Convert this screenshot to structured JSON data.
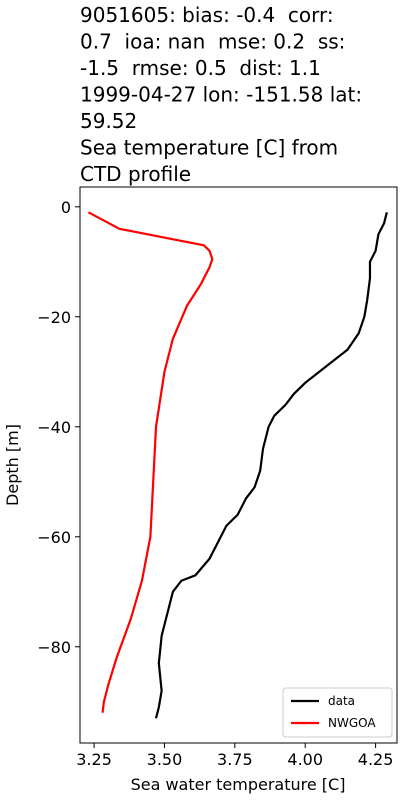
{
  "chart_data": {
    "type": "line",
    "title": [
      "9051605: bias: -0.4  corr:",
      "0.7  ioa: nan  mse: 0.2  ss:",
      "-1.5  rmse: 0.5  dist: 1.1",
      "1999-04-27 lon: -151.58 lat:",
      "59.52",
      "Sea temperature [C] from",
      "CTD profile"
    ],
    "x_label": "Sea water temperature [C]",
    "y_label": "Depth [m]",
    "xlim": [
      3.2,
      4.326
    ],
    "ylim": [
      -97.5,
      3.6
    ],
    "xticks": [
      3.25,
      {
        "value": 3.5,
        "label": "3.50"
      },
      3.75,
      {
        "value": 4,
        "label": "4.00"
      },
      4.25
    ],
    "yticks": [
      0,
      {
        "value": -20,
        "label": "−20"
      },
      {
        "value": -40,
        "label": "−40"
      },
      {
        "value": -60,
        "label": "−60"
      },
      {
        "value": -80,
        "label": "−80"
      }
    ],
    "legend": "lower right",
    "series": [
      {
        "name": "data",
        "color": "#000000",
        "x": [
          4.29,
          4.28,
          4.26,
          4.25,
          4.23,
          4.23,
          4.22,
          4.21,
          4.19,
          4.15,
          4.1,
          4.05,
          4.0,
          3.96,
          3.93,
          3.89,
          3.87,
          3.85,
          3.84,
          3.82,
          3.79,
          3.76,
          3.72,
          3.7,
          3.66,
          3.61,
          3.56,
          3.53,
          3.51,
          3.49,
          3.48,
          3.49,
          3.48,
          3.47
        ],
        "values": [
          -1,
          -3,
          -5,
          -8,
          -10,
          -13,
          -17,
          -20,
          -23,
          -26,
          -28,
          -30,
          -32,
          -34,
          -36,
          -38,
          -40,
          -44,
          -48,
          -51,
          -53,
          -56,
          -58,
          -60,
          -64,
          -67,
          -68,
          -70,
          -74,
          -78,
          -83,
          -88,
          -91,
          -93
        ]
      },
      {
        "name": "NWGOA",
        "color": "#ff0000",
        "x": [
          3.23,
          3.34,
          3.54,
          3.64,
          3.66,
          3.67,
          3.66,
          3.63,
          3.58,
          3.53,
          3.5,
          3.47,
          3.46,
          3.45,
          3.42,
          3.38,
          3.33,
          3.3,
          3.285,
          3.28
        ],
        "values": [
          -1,
          -4,
          -6,
          -7,
          -8,
          -9.5,
          -11,
          -14,
          -18,
          -24,
          -30,
          -40,
          -50,
          -60,
          -68,
          -75,
          -82,
          -87,
          -90,
          -92
        ]
      }
    ]
  }
}
